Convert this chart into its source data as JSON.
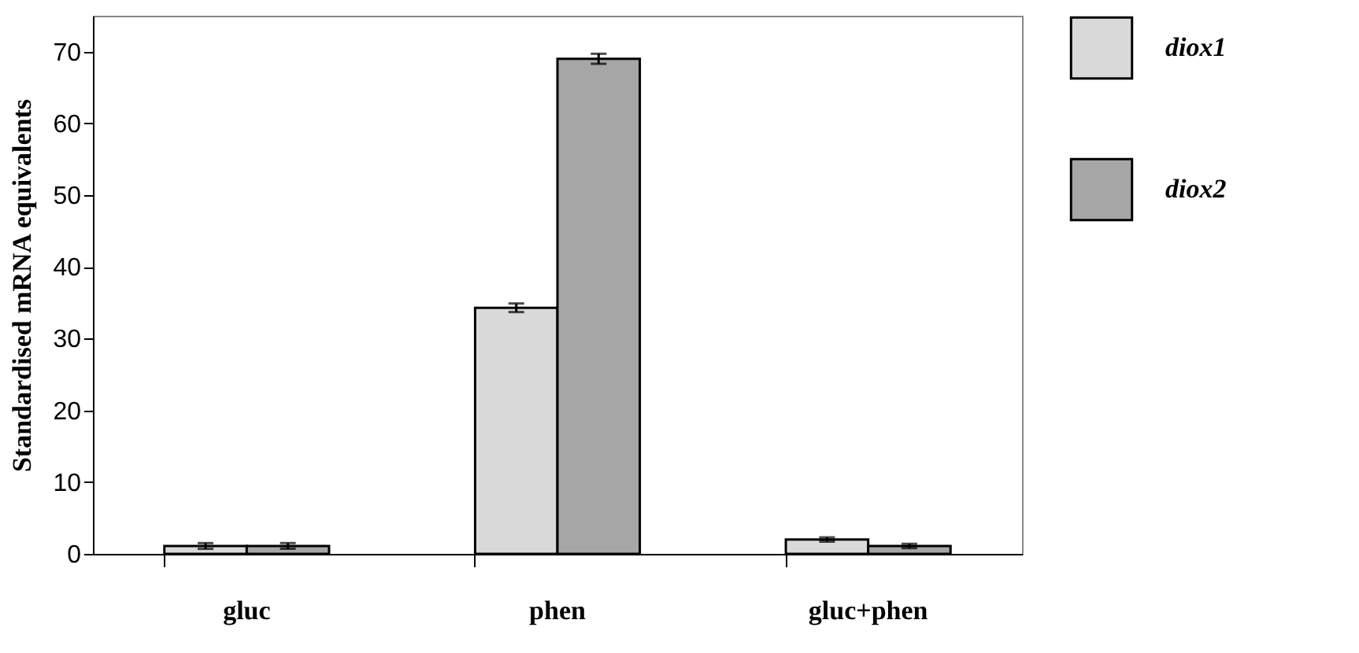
{
  "chart_data": {
    "type": "bar",
    "ylabel": "Standardised mRNA equivalents",
    "categories": [
      "gluc",
      "phen",
      "gluc+phen"
    ],
    "series": [
      {
        "name": "diox1",
        "color": "#d9d9d9",
        "values": [
          1.1,
          34.3,
          2.0
        ],
        "errors": [
          0.4,
          0.6,
          0.3
        ]
      },
      {
        "name": "diox2",
        "color": "#a6a6a6",
        "values": [
          1.1,
          69.0,
          1.1
        ],
        "errors": [
          0.4,
          0.7,
          0.3
        ]
      }
    ],
    "ylim": [
      0,
      75
    ],
    "yticks": [
      0,
      10,
      20,
      30,
      40,
      50,
      60,
      70
    ],
    "grid": false,
    "legend": "right"
  }
}
